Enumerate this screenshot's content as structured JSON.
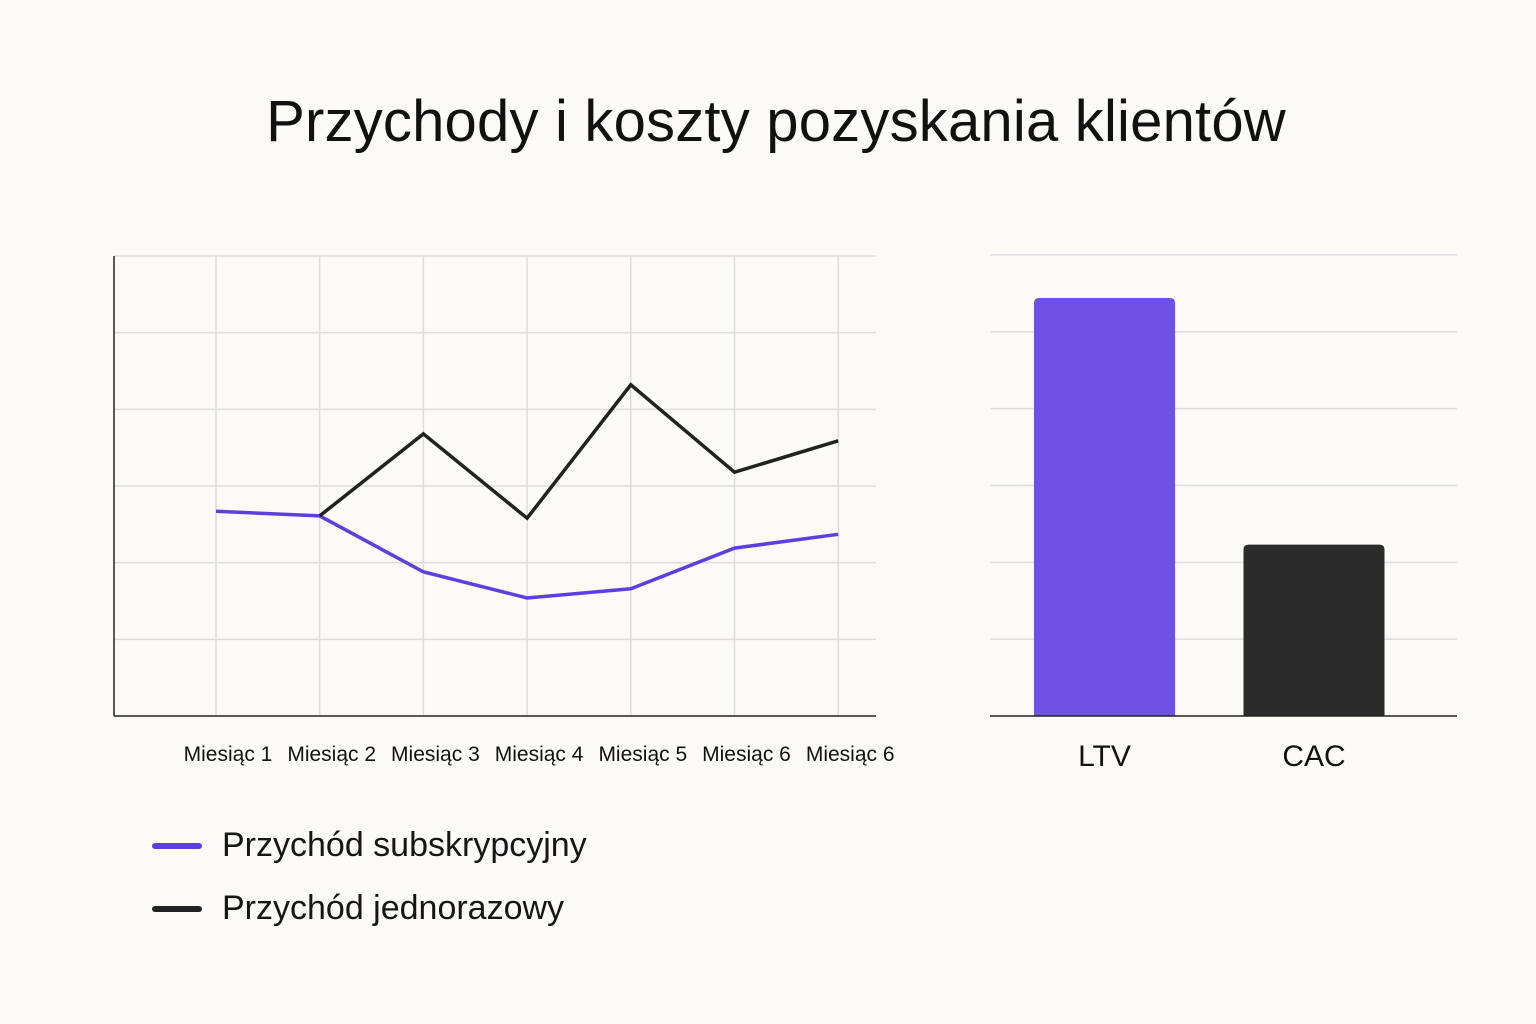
{
  "title": "Przychody i koszty pozyskania klientów",
  "colors": {
    "subscription": "#5b3fe0",
    "one_time": "#222222",
    "ltv_bar": "#6e52e8",
    "cac_bar": "#2b2b2b",
    "grid": "#dddddd",
    "background": "#fcfaf6"
  },
  "legend": [
    {
      "label": "Przychód subskrypcyjny",
      "color": "#5b3fe0"
    },
    {
      "label": "Przychód jednorazowy",
      "color": "#222222"
    }
  ],
  "chart_data": [
    {
      "type": "line",
      "title": "",
      "xlabel": "",
      "ylabel": "",
      "categories": [
        "Miesiąc 1",
        "Miesiąc 2",
        "Miesiąc 3",
        "Miesiąc 4",
        "Miesiąc 5",
        "Miesiąc 6",
        "Miesiąc 6"
      ],
      "ylim": [
        0,
        6
      ],
      "grid": true,
      "y_tick_labels_shown": false,
      "legend_position": "bottom-left",
      "series": [
        {
          "name": "Przychód subskrypcyjny",
          "color": "#5b3fe0",
          "values": [
            2.67,
            2.61,
            1.88,
            1.54,
            1.66,
            2.19,
            2.37
          ]
        },
        {
          "name": "Przychód jednorazowy",
          "color": "#222222",
          "values": [
            null,
            2.61,
            3.68,
            2.58,
            4.32,
            3.18,
            3.59
          ]
        }
      ]
    },
    {
      "type": "bar",
      "title": "",
      "categories": [
        "LTV",
        "CAC"
      ],
      "values": [
        5.44,
        2.23
      ],
      "colors": [
        "#6e52e8",
        "#2b2b2b"
      ],
      "ylim": [
        0,
        6
      ],
      "grid": true,
      "y_tick_labels_shown": false
    }
  ]
}
